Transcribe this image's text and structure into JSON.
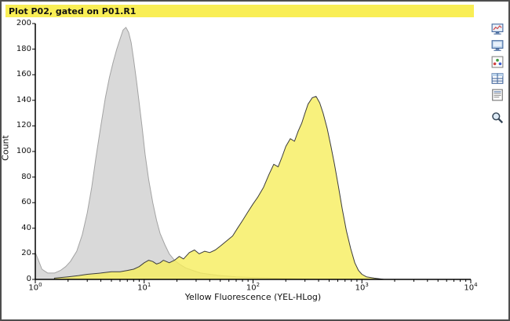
{
  "window": {
    "title": "Plot P02, gated on P01.R1"
  },
  "toolbar": {
    "icons": [
      {
        "name": "monitor-chart-icon",
        "glyph": "monitor-chart"
      },
      {
        "name": "monitor-icon",
        "glyph": "monitor"
      },
      {
        "name": "scatter-plot-icon",
        "glyph": "scatter-3d"
      },
      {
        "name": "stats-table-icon",
        "glyph": "stats-table"
      },
      {
        "name": "data-table-icon",
        "glyph": "data-table"
      },
      {
        "name": "zoom-icon",
        "glyph": "magnifier"
      }
    ]
  },
  "chart_data": {
    "type": "area",
    "title": "Plot P02, gated on P01.R1",
    "xlabel": "Yellow Fluorescence (YEL-HLog)",
    "ylabel": "Count",
    "x_scale": "log",
    "xlim": [
      1,
      10000
    ],
    "ylim": [
      0,
      200
    ],
    "y_ticks": [
      0,
      20,
      40,
      60,
      80,
      100,
      120,
      140,
      160,
      180,
      200
    ],
    "x_tick_exponents": [
      0,
      1,
      2,
      3,
      4
    ],
    "grid": false,
    "legend": false,
    "series": [
      {
        "name": "control-gray-histogram",
        "fill": "#d9d9d9",
        "stroke": "#a3a3a3",
        "opacity": 1,
        "points": [
          [
            1,
            21
          ],
          [
            1.08,
            14
          ],
          [
            1.15,
            8
          ],
          [
            1.3,
            5
          ],
          [
            1.5,
            5
          ],
          [
            1.7,
            7
          ],
          [
            1.9,
            10
          ],
          [
            2.1,
            14
          ],
          [
            2.4,
            22
          ],
          [
            2.7,
            35
          ],
          [
            3,
            52
          ],
          [
            3.3,
            72
          ],
          [
            3.6,
            95
          ],
          [
            4,
            120
          ],
          [
            4.4,
            142
          ],
          [
            4.8,
            158
          ],
          [
            5.2,
            170
          ],
          [
            5.6,
            180
          ],
          [
            6,
            188
          ],
          [
            6.4,
            195
          ],
          [
            6.8,
            197
          ],
          [
            7.2,
            193
          ],
          [
            7.6,
            185
          ],
          [
            8,
            172
          ],
          [
            8.5,
            155
          ],
          [
            9,
            138
          ],
          [
            9.6,
            118
          ],
          [
            10.2,
            98
          ],
          [
            11,
            78
          ],
          [
            12,
            60
          ],
          [
            13,
            46
          ],
          [
            14,
            36
          ],
          [
            15.5,
            27
          ],
          [
            17,
            20
          ],
          [
            19,
            15
          ],
          [
            21,
            12
          ],
          [
            24,
            9
          ],
          [
            28,
            7
          ],
          [
            33,
            5
          ],
          [
            40,
            4
          ],
          [
            50,
            3
          ],
          [
            70,
            2
          ],
          [
            100,
            1.5
          ],
          [
            150,
            1
          ],
          [
            250,
            0.5
          ],
          [
            400,
            0
          ]
        ]
      },
      {
        "name": "sample-yellow-histogram",
        "fill": "#f6ee5c",
        "stroke": "#3c3c3c",
        "opacity": 0.8,
        "points": [
          [
            1.5,
            1
          ],
          [
            2,
            2
          ],
          [
            2.5,
            3
          ],
          [
            3,
            4
          ],
          [
            4,
            5
          ],
          [
            5,
            6
          ],
          [
            6,
            6
          ],
          [
            7,
            7
          ],
          [
            8,
            8
          ],
          [
            9,
            10
          ],
          [
            10,
            13
          ],
          [
            11,
            15
          ],
          [
            12,
            14
          ],
          [
            13,
            12
          ],
          [
            14,
            13
          ],
          [
            15,
            15
          ],
          [
            17,
            13
          ],
          [
            19,
            15
          ],
          [
            21,
            18
          ],
          [
            23,
            16
          ],
          [
            26,
            21
          ],
          [
            29,
            23
          ],
          [
            32,
            20
          ],
          [
            36,
            22
          ],
          [
            40,
            21
          ],
          [
            45,
            23
          ],
          [
            50,
            26
          ],
          [
            57,
            30
          ],
          [
            65,
            34
          ],
          [
            72,
            40
          ],
          [
            80,
            46
          ],
          [
            90,
            53
          ],
          [
            100,
            59
          ],
          [
            110,
            64
          ],
          [
            125,
            72
          ],
          [
            140,
            82
          ],
          [
            155,
            90
          ],
          [
            170,
            88
          ],
          [
            185,
            96
          ],
          [
            200,
            104
          ],
          [
            220,
            110
          ],
          [
            240,
            108
          ],
          [
            260,
            116
          ],
          [
            280,
            122
          ],
          [
            300,
            130
          ],
          [
            320,
            137
          ],
          [
            350,
            142
          ],
          [
            380,
            143
          ],
          [
            410,
            138
          ],
          [
            440,
            130
          ],
          [
            480,
            118
          ],
          [
            520,
            104
          ],
          [
            560,
            90
          ],
          [
            610,
            72
          ],
          [
            660,
            55
          ],
          [
            720,
            38
          ],
          [
            790,
            24
          ],
          [
            860,
            13
          ],
          [
            930,
            7
          ],
          [
            1000,
            4
          ],
          [
            1100,
            2
          ],
          [
            1300,
            1
          ],
          [
            1600,
            0
          ]
        ]
      }
    ]
  }
}
